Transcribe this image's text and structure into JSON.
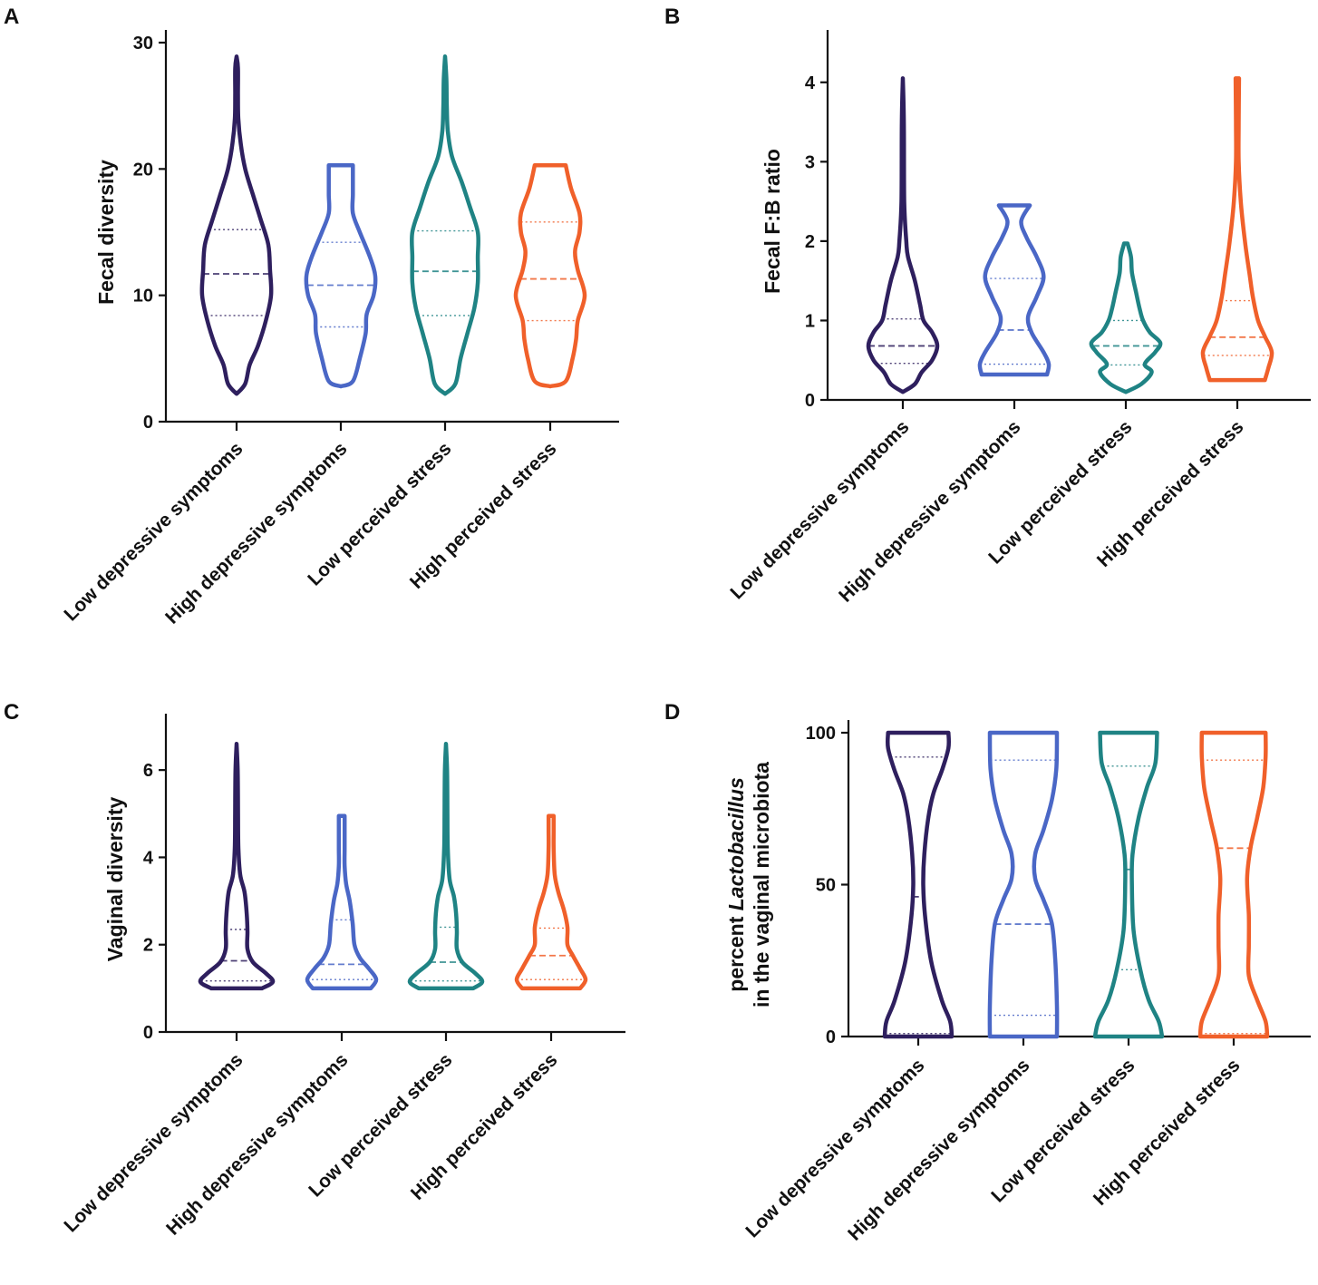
{
  "figure": {
    "description_type": "four-panel violin plot figure"
  },
  "colors": {
    "low_depressive": "#2e1f5e",
    "high_depressive": "#4a67c6",
    "low_stress": "#1f8384",
    "high_stress": "#f0602a",
    "axis": "#111111"
  },
  "chart_data": [
    {
      "panel": "A",
      "type": "violin",
      "ylabel": "Fecal diversity",
      "ylabel_italic_part": "",
      "ylabel_line2": "",
      "categories": [
        "Low depressive symptoms",
        "High depressive symptoms",
        "Low perceived stress",
        "High perceived stress"
      ],
      "ylim": [
        0,
        30
      ],
      "yticks": [
        0,
        10,
        20,
        30
      ],
      "violins": [
        {
          "min": 2.2,
          "max": 28.9,
          "median": 11.7,
          "q1": 8.4,
          "q3": 15.2,
          "profile": [
            [
              2.2,
              0.0
            ],
            [
              3,
              0.25
            ],
            [
              4.5,
              0.38
            ],
            [
              6,
              0.62
            ],
            [
              8,
              0.85
            ],
            [
              10,
              1.0
            ],
            [
              12,
              0.97
            ],
            [
              14,
              0.92
            ],
            [
              16,
              0.7
            ],
            [
              18,
              0.47
            ],
            [
              20,
              0.25
            ],
            [
              22,
              0.12
            ],
            [
              24,
              0.05
            ],
            [
              26,
              0.04
            ],
            [
              28,
              0.04
            ],
            [
              28.9,
              0.0
            ]
          ]
        },
        {
          "min": 2.8,
          "max": 20.3,
          "median": 10.8,
          "q1": 7.5,
          "q3": 14.2,
          "profile": [
            [
              2.8,
              0.0
            ],
            [
              3.2,
              0.35
            ],
            [
              5,
              0.55
            ],
            [
              7,
              0.72
            ],
            [
              8.5,
              0.75
            ],
            [
              10,
              0.95
            ],
            [
              11.5,
              1.0
            ],
            [
              13,
              0.85
            ],
            [
              15,
              0.55
            ],
            [
              16.5,
              0.35
            ],
            [
              18,
              0.35
            ],
            [
              19.5,
              0.35
            ],
            [
              20.3,
              0.35
            ]
          ]
        },
        {
          "min": 2.2,
          "max": 28.9,
          "median": 11.9,
          "q1": 8.4,
          "q3": 15.1,
          "profile": [
            [
              2.2,
              0.0
            ],
            [
              3,
              0.3
            ],
            [
              5,
              0.45
            ],
            [
              7,
              0.65
            ],
            [
              9,
              0.85
            ],
            [
              11,
              0.95
            ],
            [
              13,
              0.95
            ],
            [
              15,
              0.95
            ],
            [
              17,
              0.72
            ],
            [
              19,
              0.48
            ],
            [
              21,
              0.2
            ],
            [
              23,
              0.08
            ],
            [
              25,
              0.05
            ],
            [
              27,
              0.04
            ],
            [
              28.9,
              0.0
            ]
          ]
        },
        {
          "min": 2.8,
          "max": 20.3,
          "median": 11.3,
          "q1": 8.0,
          "q3": 15.8,
          "profile": [
            [
              2.8,
              0.0
            ],
            [
              3.2,
              0.45
            ],
            [
              5,
              0.65
            ],
            [
              6.5,
              0.75
            ],
            [
              8,
              0.8
            ],
            [
              10,
              1.0
            ],
            [
              12,
              0.8
            ],
            [
              13.5,
              0.72
            ],
            [
              15,
              0.85
            ],
            [
              16.5,
              0.85
            ],
            [
              18.5,
              0.6
            ],
            [
              20.3,
              0.45
            ]
          ]
        }
      ]
    },
    {
      "panel": "B",
      "type": "violin",
      "ylabel": "Fecal F:B ratio",
      "ylabel_italic_part": "",
      "ylabel_line2": "",
      "categories": [
        "Low depressive symptoms",
        "High depressive symptoms",
        "Low perceived stress",
        "High perceived stress"
      ],
      "ylim": [
        0,
        4.5
      ],
      "yticks": [
        0,
        1,
        2,
        3,
        4
      ],
      "violins": [
        {
          "min": 0.1,
          "max": 4.05,
          "median": 0.68,
          "q1": 0.46,
          "q3": 1.02,
          "profile": [
            [
              0.1,
              0.0
            ],
            [
              0.2,
              0.35
            ],
            [
              0.35,
              0.55
            ],
            [
              0.5,
              0.85
            ],
            [
              0.68,
              1.0
            ],
            [
              0.85,
              0.85
            ],
            [
              1.0,
              0.6
            ],
            [
              1.2,
              0.5
            ],
            [
              1.5,
              0.35
            ],
            [
              1.8,
              0.15
            ],
            [
              2.0,
              0.1
            ],
            [
              2.5,
              0.04
            ],
            [
              3.5,
              0.03
            ],
            [
              4.05,
              0.0
            ]
          ]
        },
        {
          "min": 0.32,
          "max": 2.45,
          "median": 0.88,
          "q1": 0.45,
          "q3": 1.53,
          "profile": [
            [
              0.32,
              0.95
            ],
            [
              0.45,
              1.0
            ],
            [
              0.6,
              0.85
            ],
            [
              0.85,
              0.5
            ],
            [
              1.05,
              0.4
            ],
            [
              1.3,
              0.65
            ],
            [
              1.55,
              0.85
            ],
            [
              1.8,
              0.65
            ],
            [
              2.05,
              0.35
            ],
            [
              2.25,
              0.2
            ],
            [
              2.45,
              0.45
            ]
          ]
        },
        {
          "min": 0.1,
          "max": 1.97,
          "median": 0.68,
          "q1": 0.44,
          "q3": 1.0,
          "profile": [
            [
              0.1,
              0.0
            ],
            [
              0.2,
              0.45
            ],
            [
              0.35,
              0.75
            ],
            [
              0.45,
              0.55
            ],
            [
              0.6,
              0.85
            ],
            [
              0.72,
              1.0
            ],
            [
              0.85,
              0.7
            ],
            [
              1.0,
              0.5
            ],
            [
              1.15,
              0.4
            ],
            [
              1.35,
              0.3
            ],
            [
              1.6,
              0.18
            ],
            [
              1.8,
              0.15
            ],
            [
              1.97,
              0.05
            ]
          ]
        },
        {
          "min": 0.25,
          "max": 4.05,
          "median": 0.79,
          "q1": 0.56,
          "q3": 1.25,
          "profile": [
            [
              0.25,
              0.8
            ],
            [
              0.4,
              0.9
            ],
            [
              0.6,
              1.0
            ],
            [
              0.8,
              0.8
            ],
            [
              1.0,
              0.6
            ],
            [
              1.3,
              0.45
            ],
            [
              1.6,
              0.35
            ],
            [
              2.0,
              0.22
            ],
            [
              2.5,
              0.1
            ],
            [
              3.0,
              0.04
            ],
            [
              3.5,
              0.04
            ],
            [
              4.05,
              0.05
            ]
          ]
        }
      ]
    },
    {
      "panel": "C",
      "type": "violin",
      "ylabel": "Vaginal diversity",
      "ylabel_italic_part": "",
      "ylabel_line2": "",
      "categories": [
        "Low depressive symptoms",
        "High depressive symptoms",
        "Low perceived stress",
        "High perceived stress"
      ],
      "ylim": [
        0,
        7
      ],
      "yticks": [
        0,
        2,
        4,
        6
      ],
      "violins": [
        {
          "min": 1.0,
          "max": 6.6,
          "median": 1.63,
          "q1": 1.17,
          "q3": 2.35,
          "profile": [
            [
              1.0,
              0.7
            ],
            [
              1.15,
              1.0
            ],
            [
              1.35,
              0.8
            ],
            [
              1.6,
              0.45
            ],
            [
              1.9,
              0.3
            ],
            [
              2.3,
              0.3
            ],
            [
              2.7,
              0.28
            ],
            [
              3.2,
              0.22
            ],
            [
              3.6,
              0.1
            ],
            [
              4.2,
              0.05
            ],
            [
              5,
              0.04
            ],
            [
              6,
              0.03
            ],
            [
              6.6,
              0.0
            ]
          ]
        },
        {
          "min": 1.0,
          "max": 4.95,
          "median": 1.55,
          "q1": 1.2,
          "q3": 2.57,
          "profile": [
            [
              1.0,
              0.8
            ],
            [
              1.2,
              0.95
            ],
            [
              1.45,
              0.75
            ],
            [
              1.7,
              0.5
            ],
            [
              2.0,
              0.35
            ],
            [
              2.5,
              0.3
            ],
            [
              3.0,
              0.22
            ],
            [
              3.4,
              0.12
            ],
            [
              3.8,
              0.08
            ],
            [
              4.2,
              0.08
            ],
            [
              4.6,
              0.08
            ],
            [
              4.95,
              0.08
            ]
          ]
        },
        {
          "min": 1.0,
          "max": 6.6,
          "median": 1.6,
          "q1": 1.17,
          "q3": 2.4,
          "profile": [
            [
              1.0,
              0.75
            ],
            [
              1.15,
              1.0
            ],
            [
              1.35,
              0.8
            ],
            [
              1.6,
              0.45
            ],
            [
              1.9,
              0.3
            ],
            [
              2.3,
              0.3
            ],
            [
              2.7,
              0.28
            ],
            [
              3.1,
              0.22
            ],
            [
              3.5,
              0.1
            ],
            [
              4.2,
              0.05
            ],
            [
              5,
              0.04
            ],
            [
              6,
              0.03
            ],
            [
              6.6,
              0.0
            ]
          ]
        },
        {
          "min": 1.0,
          "max": 4.95,
          "median": 1.75,
          "q1": 1.2,
          "q3": 2.38,
          "profile": [
            [
              1.0,
              0.8
            ],
            [
              1.2,
              0.95
            ],
            [
              1.45,
              0.8
            ],
            [
              1.75,
              0.6
            ],
            [
              2.0,
              0.45
            ],
            [
              2.4,
              0.45
            ],
            [
              2.8,
              0.35
            ],
            [
              3.2,
              0.2
            ],
            [
              3.6,
              0.1
            ],
            [
              4.2,
              0.07
            ],
            [
              4.6,
              0.07
            ],
            [
              4.95,
              0.07
            ]
          ]
        }
      ]
    },
    {
      "panel": "D",
      "type": "violin",
      "ylabel": "percent ",
      "ylabel_italic_part": "Lactobacillus",
      "ylabel_line2": "in the vaginal microbiota",
      "categories": [
        "Low depressive symptoms",
        "High depressive symptoms",
        "Low perceived stress",
        "High perceived stress"
      ],
      "ylim": [
        0,
        100
      ],
      "yticks": [
        0,
        50,
        100
      ],
      "violins": [
        {
          "min": 0,
          "max": 100,
          "median": 46,
          "q1": 1,
          "q3": 92,
          "profile": [
            [
              0,
              1.0
            ],
            [
              5,
              0.95
            ],
            [
              12,
              0.7
            ],
            [
              25,
              0.38
            ],
            [
              40,
              0.2
            ],
            [
              50,
              0.15
            ],
            [
              60,
              0.18
            ],
            [
              72,
              0.3
            ],
            [
              80,
              0.45
            ],
            [
              88,
              0.72
            ],
            [
              95,
              0.9
            ],
            [
              100,
              0.9
            ]
          ]
        },
        {
          "min": 0,
          "max": 100,
          "median": 37,
          "q1": 7,
          "q3": 91,
          "profile": [
            [
              0,
              1.0
            ],
            [
              10,
              1.0
            ],
            [
              25,
              0.95
            ],
            [
              37,
              0.85
            ],
            [
              45,
              0.6
            ],
            [
              52,
              0.35
            ],
            [
              60,
              0.35
            ],
            [
              68,
              0.6
            ],
            [
              78,
              0.85
            ],
            [
              88,
              0.98
            ],
            [
              100,
              1.0
            ]
          ]
        },
        {
          "min": 0,
          "max": 100,
          "median": 55,
          "q1": 22,
          "q3": 89,
          "profile": [
            [
              0,
              1.0
            ],
            [
              5,
              0.9
            ],
            [
              12,
              0.6
            ],
            [
              22,
              0.35
            ],
            [
              35,
              0.15
            ],
            [
              50,
              0.1
            ],
            [
              60,
              0.12
            ],
            [
              72,
              0.3
            ],
            [
              82,
              0.55
            ],
            [
              90,
              0.8
            ],
            [
              100,
              0.85
            ]
          ]
        },
        {
          "min": 0,
          "max": 100,
          "median": 62,
          "q1": 1,
          "q3": 91,
          "profile": [
            [
              0,
              1.0
            ],
            [
              5,
              0.95
            ],
            [
              12,
              0.7
            ],
            [
              20,
              0.45
            ],
            [
              30,
              0.45
            ],
            [
              40,
              0.45
            ],
            [
              52,
              0.4
            ],
            [
              62,
              0.5
            ],
            [
              72,
              0.7
            ],
            [
              82,
              0.88
            ],
            [
              92,
              0.95
            ],
            [
              100,
              0.95
            ]
          ]
        }
      ]
    }
  ]
}
